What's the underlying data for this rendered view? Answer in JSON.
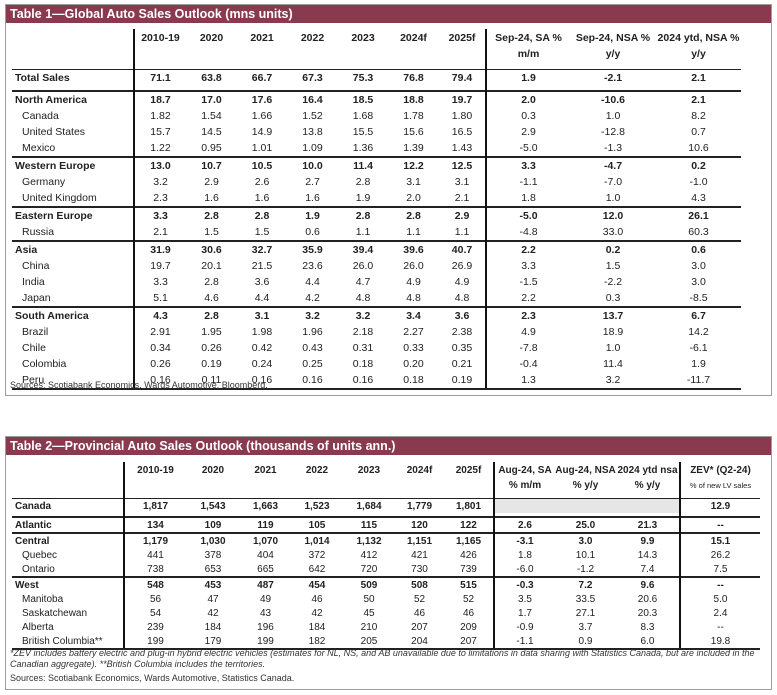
{
  "table1": {
    "title": "Table 1—Global Auto Sales Outlook (mns units)",
    "headers": [
      "2010-19",
      "2020",
      "2021",
      "2022",
      "2023",
      "2024f",
      "2025f",
      "Sep-24, SA %",
      "Sep-24, NSA %",
      "2024 ytd, NSA %"
    ],
    "subheaders": [
      "m/m",
      "y/y",
      "y/y"
    ],
    "rows": [
      {
        "label": "Total Sales",
        "v": [
          "71.1",
          "63.8",
          "66.7",
          "67.3",
          "75.3",
          "76.8",
          "79.4",
          "1.9",
          "-2.1",
          "2.1"
        ]
      },
      {
        "label": "North America",
        "v": [
          "18.7",
          "17.0",
          "17.6",
          "16.4",
          "18.5",
          "18.8",
          "19.7",
          "2.0",
          "-10.6",
          "2.1"
        ]
      },
      {
        "label": "Canada",
        "v": [
          "1.82",
          "1.54",
          "1.66",
          "1.52",
          "1.68",
          "1.78",
          "1.80",
          "0.3",
          "1.0",
          "8.2"
        ]
      },
      {
        "label": "United States",
        "v": [
          "15.7",
          "14.5",
          "14.9",
          "13.8",
          "15.5",
          "15.6",
          "16.5",
          "2.9",
          "-12.8",
          "0.7"
        ]
      },
      {
        "label": "Mexico",
        "v": [
          "1.22",
          "0.95",
          "1.01",
          "1.09",
          "1.36",
          "1.39",
          "1.43",
          "-5.0",
          "-1.3",
          "10.6"
        ]
      },
      {
        "label": "Western Europe",
        "v": [
          "13.0",
          "10.7",
          "10.5",
          "10.0",
          "11.4",
          "12.2",
          "12.5",
          "3.3",
          "-4.7",
          "0.2"
        ]
      },
      {
        "label": "Germany",
        "v": [
          "3.2",
          "2.9",
          "2.6",
          "2.7",
          "2.8",
          "3.1",
          "3.1",
          "-1.1",
          "-7.0",
          "-1.0"
        ]
      },
      {
        "label": "United Kingdom",
        "v": [
          "2.3",
          "1.6",
          "1.6",
          "1.6",
          "1.9",
          "2.0",
          "2.1",
          "1.8",
          "1.0",
          "4.3"
        ]
      },
      {
        "label": "Eastern Europe",
        "v": [
          "3.3",
          "2.8",
          "2.8",
          "1.9",
          "2.8",
          "2.8",
          "2.9",
          "-5.0",
          "12.0",
          "26.1"
        ]
      },
      {
        "label": "Russia",
        "v": [
          "2.1",
          "1.5",
          "1.5",
          "0.6",
          "1.1",
          "1.1",
          "1.1",
          "-4.8",
          "33.0",
          "60.3"
        ]
      },
      {
        "label": "Asia",
        "v": [
          "31.9",
          "30.6",
          "32.7",
          "35.9",
          "39.4",
          "39.6",
          "40.7",
          "2.2",
          "0.2",
          "0.6"
        ]
      },
      {
        "label": "China",
        "v": [
          "19.7",
          "20.1",
          "21.5",
          "23.6",
          "26.0",
          "26.0",
          "26.9",
          "3.3",
          "1.5",
          "3.0"
        ]
      },
      {
        "label": "India",
        "v": [
          "3.3",
          "2.8",
          "3.6",
          "4.4",
          "4.7",
          "4.9",
          "4.9",
          "-1.5",
          "-2.2",
          "3.0"
        ]
      },
      {
        "label": "Japan",
        "v": [
          "5.1",
          "4.6",
          "4.4",
          "4.2",
          "4.8",
          "4.8",
          "4.8",
          "2.2",
          "0.3",
          "-8.5"
        ]
      },
      {
        "label": "South America",
        "v": [
          "4.3",
          "2.8",
          "3.1",
          "3.2",
          "3.2",
          "3.4",
          "3.6",
          "2.3",
          "13.7",
          "6.7"
        ]
      },
      {
        "label": "Brazil",
        "v": [
          "2.91",
          "1.95",
          "1.98",
          "1.96",
          "2.18",
          "2.27",
          "2.38",
          "4.9",
          "18.9",
          "14.2"
        ]
      },
      {
        "label": "Chile",
        "v": [
          "0.34",
          "0.26",
          "0.42",
          "0.43",
          "0.31",
          "0.33",
          "0.35",
          "-7.8",
          "1.0",
          "-6.1"
        ]
      },
      {
        "label": "Colombia",
        "v": [
          "0.26",
          "0.19",
          "0.24",
          "0.25",
          "0.18",
          "0.20",
          "0.21",
          "-0.4",
          "11.4",
          "1.9"
        ]
      },
      {
        "label": "Peru",
        "v": [
          "0.16",
          "0.11",
          "0.16",
          "0.16",
          "0.16",
          "0.18",
          "0.19",
          "1.3",
          "3.2",
          "-11.7"
        ]
      }
    ],
    "source": "Sources: Scotiabank Economics, Wards Automotive, Bloomberg."
  },
  "table2": {
    "title": "Table 2—Provincial Auto Sales Outlook (thousands of units ann.)",
    "headers": [
      "2010-19",
      "2020",
      "2021",
      "2022",
      "2023",
      "2024f",
      "2025f",
      "Aug-24, SA",
      "Aug-24, NSA",
      "2024 ytd nsa",
      "ZEV* (Q2-24)"
    ],
    "subheaders": [
      "% m/m",
      "% y/y",
      "% y/y",
      "% of new LV sales"
    ],
    "rows": [
      {
        "label": "Canada",
        "v": [
          "1,817",
          "1,543",
          "1,663",
          "1,523",
          "1,684",
          "1,779",
          "1,801",
          "",
          "",
          "",
          "12.9"
        ]
      },
      {
        "label": "Atlantic",
        "v": [
          "134",
          "109",
          "119",
          "105",
          "115",
          "120",
          "122",
          "2.6",
          "25.0",
          "21.3",
          "--"
        ]
      },
      {
        "label": "Central",
        "v": [
          "1,179",
          "1,030",
          "1,070",
          "1,014",
          "1,132",
          "1,151",
          "1,165",
          "-3.1",
          "3.0",
          "9.9",
          "15.1"
        ]
      },
      {
        "label": "Quebec",
        "v": [
          "441",
          "378",
          "404",
          "372",
          "412",
          "421",
          "426",
          "1.8",
          "10.1",
          "14.3",
          "26.2"
        ]
      },
      {
        "label": "Ontario",
        "v": [
          "738",
          "653",
          "665",
          "642",
          "720",
          "730",
          "739",
          "-6.0",
          "-1.2",
          "7.4",
          "7.5"
        ]
      },
      {
        "label": "West",
        "v": [
          "548",
          "453",
          "487",
          "454",
          "509",
          "508",
          "515",
          "-0.3",
          "7.2",
          "9.6",
          "--"
        ]
      },
      {
        "label": "Manitoba",
        "v": [
          "56",
          "47",
          "49",
          "46",
          "50",
          "52",
          "52",
          "3.5",
          "33.5",
          "20.6",
          "5.0"
        ]
      },
      {
        "label": "Saskatchewan",
        "v": [
          "54",
          "42",
          "43",
          "42",
          "45",
          "46",
          "46",
          "1.7",
          "27.1",
          "20.3",
          "2.4"
        ]
      },
      {
        "label": "Alberta",
        "v": [
          "239",
          "184",
          "196",
          "184",
          "210",
          "207",
          "209",
          "-0.9",
          "3.7",
          "8.3",
          "--"
        ]
      },
      {
        "label": "British Columbia**",
        "v": [
          "199",
          "179",
          "199",
          "182",
          "205",
          "204",
          "207",
          "-1.1",
          "0.9",
          "6.0",
          "19.8"
        ]
      }
    ],
    "note": "*ZEV includes battery electric and plug-in hybrid electric vehicles (estimates for NL, NS, and AB unavailable due to limitations in data sharing with Statistics Canada, but are included in the Canadian aggregate). **British Columbia includes the territories.",
    "source": "Sources: Scotiabank Economics, Wards Automotive, Statistics Canada."
  }
}
